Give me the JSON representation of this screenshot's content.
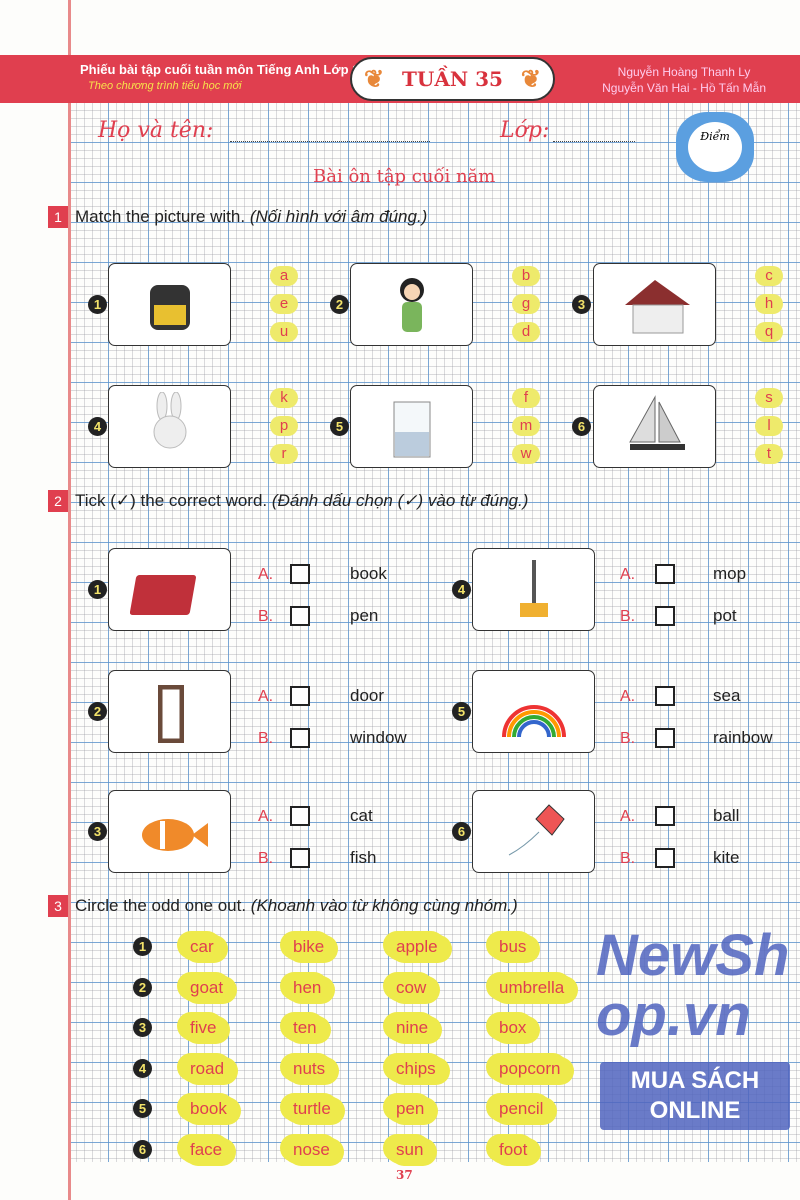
{
  "header": {
    "title": "Phiếu bài tập cuối tuần môn Tiếng Anh Lớp 1",
    "subtitle": "Theo chương trình tiểu học mới",
    "week": "TUẦN 35",
    "authors_line1": "Nguyễn Hoàng Thanh Ly",
    "authors_line2": "Nguyễn Văn Hai - Hồ Tấn Mẫn"
  },
  "student": {
    "name_label": "Họ và tên:",
    "class_label": "Lớp:",
    "score_label": "Điểm"
  },
  "lesson_title": "Bài ôn tập cuối năm",
  "exercise1": {
    "number": "1",
    "instruction": "Match the picture with.",
    "instruction_vi": "(Nối hình với âm đúng.)",
    "items": [
      {
        "n": "1",
        "picture": "backpack",
        "letters": [
          "a",
          "e",
          "u"
        ]
      },
      {
        "n": "2",
        "picture": "doll",
        "letters": [
          "b",
          "g",
          "d"
        ]
      },
      {
        "n": "3",
        "picture": "house",
        "letters": [
          "c",
          "h",
          "q"
        ]
      },
      {
        "n": "4",
        "picture": "rabbit",
        "letters": [
          "k",
          "p",
          "r"
        ]
      },
      {
        "n": "5",
        "picture": "glass-of-water",
        "letters": [
          "f",
          "m",
          "w"
        ]
      },
      {
        "n": "6",
        "picture": "sailboat",
        "letters": [
          "s",
          "l",
          "t"
        ]
      }
    ]
  },
  "exercise2": {
    "number": "2",
    "instruction": "Tick (✓) the correct word.",
    "instruction_vi": "(Đánh dấu chọn (✓) vào từ đúng.)",
    "items": [
      {
        "n": "1",
        "picture": "book",
        "a": "book",
        "b": "pen"
      },
      {
        "n": "2",
        "picture": "door",
        "a": "door",
        "b": "window"
      },
      {
        "n": "3",
        "picture": "fish",
        "a": "cat",
        "b": "fish"
      },
      {
        "n": "4",
        "picture": "mop",
        "a": "mop",
        "b": "pot"
      },
      {
        "n": "5",
        "picture": "rainbow",
        "a": "sea",
        "b": "rainbow"
      },
      {
        "n": "6",
        "picture": "kite",
        "a": "ball",
        "b": "kite"
      }
    ],
    "label_a": "A.",
    "label_b": "B."
  },
  "exercise3": {
    "number": "3",
    "instruction": "Circle the odd one out.",
    "instruction_vi": "(Khoanh vào từ không cùng nhóm.)",
    "rows": [
      {
        "n": "1",
        "words": [
          "car",
          "bike",
          "apple",
          "bus"
        ]
      },
      {
        "n": "2",
        "words": [
          "goat",
          "hen",
          "cow",
          "umbrella"
        ]
      },
      {
        "n": "3",
        "words": [
          "five",
          "ten",
          "nine",
          "box"
        ]
      },
      {
        "n": "4",
        "words": [
          "road",
          "nuts",
          "chips",
          "popcorn"
        ]
      },
      {
        "n": "5",
        "words": [
          "book",
          "turtle",
          "pen",
          "pencil"
        ]
      },
      {
        "n": "6",
        "words": [
          "face",
          "nose",
          "sun",
          "foot"
        ]
      }
    ]
  },
  "watermark": {
    "logo": "NewShop.vn",
    "banner": "MUA SÁCH ONLINE"
  },
  "page_number": "37",
  "colors": {
    "accent": "#e03f4f",
    "highlight": "#eeea4b",
    "grid": "#5a96d2"
  }
}
